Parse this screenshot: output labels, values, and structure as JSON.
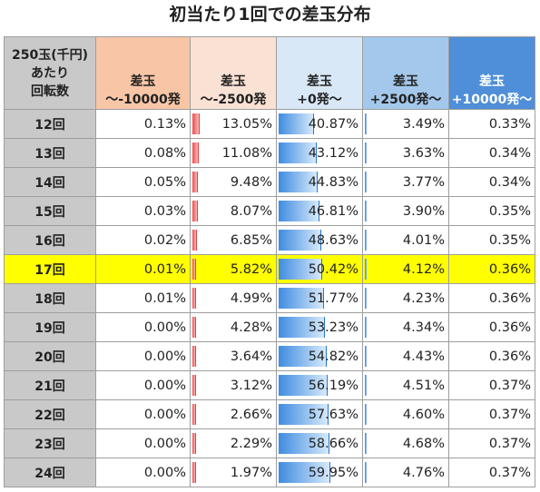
{
  "title": "初当たり1回での差玉分布",
  "headers": [
    [
      "250玉(千円)",
      "あたり",
      "回転数"
    ],
    [
      "差玉",
      "～-10000発"
    ],
    [
      "差玉",
      "～-2500発"
    ],
    [
      "差玉",
      "+0発～"
    ],
    [
      "差玉",
      "+2500発～"
    ],
    [
      "差玉",
      "+10000発～"
    ]
  ],
  "highlight_row_index": 5,
  "colors": {
    "highlight": "#ffff00",
    "header_gray": "#c9c9c9",
    "bar_red": "#ef4d4d",
    "bar_blue": "#3f8ce0"
  },
  "chart_data": {
    "type": "table",
    "title": "初当たり1回での差玉分布",
    "columns": [
      "～-10000発",
      "～-2500発",
      "+0発～",
      "+2500発～",
      "+10000発～"
    ],
    "rows": [
      {
        "label": "12回",
        "values": [
          "0.13%",
          "13.05%",
          "40.87%",
          "3.49%",
          "0.33%"
        ]
      },
      {
        "label": "13回",
        "values": [
          "0.08%",
          "11.08%",
          "43.12%",
          "3.63%",
          "0.34%"
        ]
      },
      {
        "label": "14回",
        "values": [
          "0.05%",
          "9.48%",
          "44.83%",
          "3.77%",
          "0.34%"
        ]
      },
      {
        "label": "15回",
        "values": [
          "0.03%",
          "8.07%",
          "46.81%",
          "3.90%",
          "0.35%"
        ]
      },
      {
        "label": "16回",
        "values": [
          "0.02%",
          "6.85%",
          "48.63%",
          "4.01%",
          "0.35%"
        ]
      },
      {
        "label": "17回",
        "values": [
          "0.01%",
          "5.82%",
          "50.42%",
          "4.12%",
          "0.36%"
        ]
      },
      {
        "label": "18回",
        "values": [
          "0.01%",
          "4.99%",
          "51.77%",
          "4.23%",
          "0.36%"
        ]
      },
      {
        "label": "19回",
        "values": [
          "0.00%",
          "4.28%",
          "53.23%",
          "4.34%",
          "0.36%"
        ]
      },
      {
        "label": "20回",
        "values": [
          "0.00%",
          "3.64%",
          "54.82%",
          "4.43%",
          "0.36%"
        ]
      },
      {
        "label": "21回",
        "values": [
          "0.00%",
          "3.12%",
          "56.19%",
          "4.51%",
          "0.37%"
        ]
      },
      {
        "label": "22回",
        "values": [
          "0.00%",
          "2.66%",
          "57.63%",
          "4.60%",
          "0.37%"
        ]
      },
      {
        "label": "23回",
        "values": [
          "0.00%",
          "2.29%",
          "58.66%",
          "4.68%",
          "0.37%"
        ]
      },
      {
        "label": "24回",
        "values": [
          "0.00%",
          "1.97%",
          "59.95%",
          "4.76%",
          "0.37%"
        ]
      }
    ]
  }
}
